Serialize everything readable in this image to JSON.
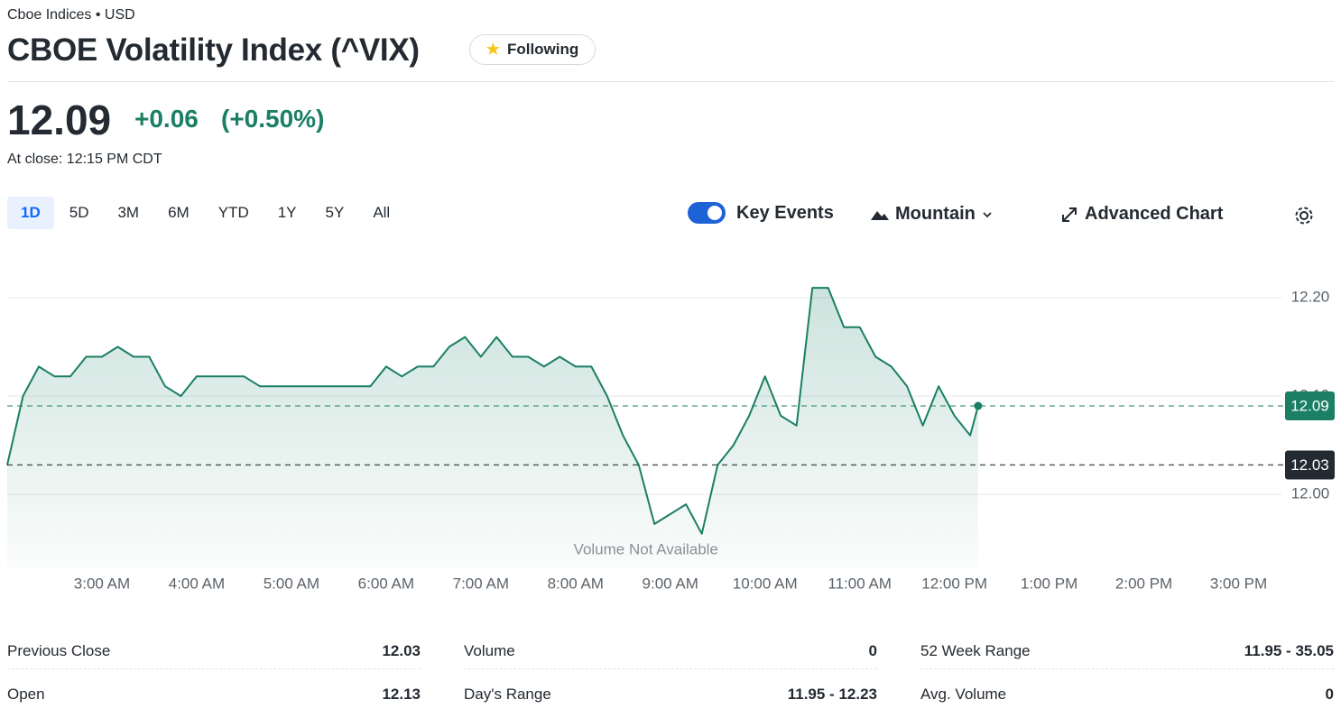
{
  "header": {
    "exchange": "Cboe Indices • USD",
    "title": "CBOE Volatility Index (^VIX)",
    "follow_button": "Following"
  },
  "quote": {
    "price": "12.09",
    "change": "+0.06",
    "change_percent": "(+0.50%)",
    "close_time": "At close: 12:15 PM CDT"
  },
  "range_tabs": {
    "options": [
      "1D",
      "5D",
      "3M",
      "6M",
      "YTD",
      "1Y",
      "5Y",
      "All"
    ],
    "selected": "1D"
  },
  "toolbar": {
    "key_events": {
      "label": "Key Events",
      "on": true
    },
    "chart_type": "Mountain",
    "advanced": "Advanced Chart"
  },
  "chart_data": {
    "type": "area",
    "color": "#1a7f64",
    "x": [
      "2:00 AM",
      "2:10 AM",
      "2:20 AM",
      "2:30 AM",
      "2:40 AM",
      "2:50 AM",
      "3:00 AM",
      "3:10 AM",
      "3:20 AM",
      "3:30 AM",
      "3:40 AM",
      "3:50 AM",
      "4:00 AM",
      "4:10 AM",
      "4:20 AM",
      "4:30 AM",
      "4:40 AM",
      "4:50 AM",
      "5:00 AM",
      "5:10 AM",
      "5:20 AM",
      "5:30 AM",
      "5:40 AM",
      "5:50 AM",
      "6:00 AM",
      "6:10 AM",
      "6:20 AM",
      "6:30 AM",
      "6:40 AM",
      "6:50 AM",
      "7:00 AM",
      "7:10 AM",
      "7:20 AM",
      "7:30 AM",
      "7:40 AM",
      "7:50 AM",
      "8:00 AM",
      "8:10 AM",
      "8:20 AM",
      "8:30 AM",
      "8:40 AM",
      "8:50 AM",
      "9:00 AM",
      "9:10 AM",
      "9:20 AM",
      "9:30 AM",
      "9:40 AM",
      "9:50 AM",
      "10:00 AM",
      "10:10 AM",
      "10:20 AM",
      "10:30 AM",
      "10:40 AM",
      "10:50 AM",
      "11:00 AM",
      "11:10 AM",
      "11:20 AM",
      "11:30 AM",
      "11:40 AM",
      "11:50 AM",
      "12:00 PM",
      "12:10 PM",
      "12:15 PM"
    ],
    "values": [
      12.03,
      12.1,
      12.13,
      12.12,
      12.12,
      12.14,
      12.14,
      12.15,
      12.14,
      12.14,
      12.11,
      12.1,
      12.12,
      12.12,
      12.12,
      12.12,
      12.11,
      12.11,
      12.11,
      12.11,
      12.11,
      12.11,
      12.11,
      12.11,
      12.13,
      12.12,
      12.13,
      12.13,
      12.15,
      12.16,
      12.14,
      12.16,
      12.14,
      12.14,
      12.13,
      12.14,
      12.13,
      12.13,
      12.1,
      12.06,
      12.03,
      11.97,
      11.98,
      11.99,
      11.96,
      12.03,
      12.05,
      12.08,
      12.12,
      12.08,
      12.07,
      12.21,
      12.21,
      12.17,
      12.17,
      12.14,
      12.13,
      12.11,
      12.07,
      12.11,
      12.08,
      12.06,
      12.09
    ],
    "xlim": [
      "2:00 AM",
      "3:30 PM"
    ],
    "xticks": [
      "3:00 AM",
      "4:00 AM",
      "5:00 AM",
      "6:00 AM",
      "7:00 AM",
      "8:00 AM",
      "9:00 AM",
      "10:00 AM",
      "11:00 AM",
      "12:00 PM",
      "1:00 PM",
      "2:00 PM",
      "3:00 PM"
    ],
    "ylim": [
      11.925,
      12.255
    ],
    "yticks": [
      {
        "value": 12.2,
        "label": "12.20"
      },
      {
        "value": 12.1,
        "label": "12.10"
      },
      {
        "value": 12,
        "label": "12.00"
      }
    ],
    "grid": true,
    "reference_lines": [
      {
        "value": 12.09,
        "color": "#1a7f64"
      },
      {
        "value": 12.03,
        "color": "#232a31"
      }
    ],
    "annotation": "Volume Not Available"
  },
  "stats": [
    [
      {
        "label": "Previous Close",
        "value": "12.03"
      },
      {
        "label": "Volume",
        "value": "0"
      },
      {
        "label": "52 Week Range",
        "value": "11.95 - 35.05"
      }
    ],
    [
      {
        "label": "Open",
        "value": "12.13"
      },
      {
        "label": "Day's Range",
        "value": "11.95 - 12.23"
      },
      {
        "label": "Avg. Volume",
        "value": "0"
      }
    ]
  ]
}
